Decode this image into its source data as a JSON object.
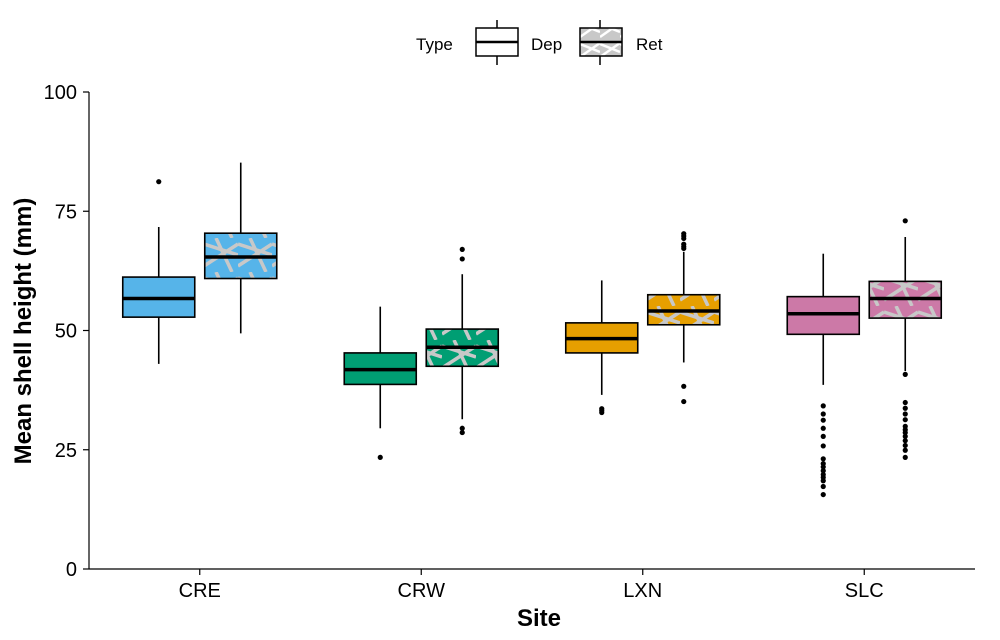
{
  "chart_data": {
    "type": "boxplot",
    "xlabel": "Site",
    "ylabel": "Mean shell height (mm)",
    "ylim": [
      0,
      100
    ],
    "yticks": [
      0,
      25,
      50,
      75,
      100
    ],
    "categories": [
      "CRE",
      "CRW",
      "LXN",
      "SLC"
    ],
    "colors": {
      "CRE": "#56b4e9",
      "CRW": "#009e73",
      "LXN": "#e69f00",
      "SLC": "#cc79a7"
    },
    "legend": {
      "title": "Type",
      "position": "top",
      "items": [
        "Dep",
        "Ret"
      ],
      "ret_pattern": "crosshatch-grey"
    },
    "series": [
      {
        "name": "Dep",
        "boxes": [
          {
            "site": "CRE",
            "whisker_low": 43,
            "q1": 52.8,
            "median": 56.7,
            "q3": 61.2,
            "whisker_high": 71.7,
            "outliers": [
              81.2
            ]
          },
          {
            "site": "CRW",
            "whisker_low": 29.5,
            "q1": 38.7,
            "median": 41.8,
            "q3": 45.3,
            "whisker_high": 55,
            "outliers": [
              23.4
            ]
          },
          {
            "site": "LXN",
            "whisker_low": 36.5,
            "q1": 45.3,
            "median": 48.3,
            "q3": 51.6,
            "whisker_high": 60.5,
            "outliers": [
              33.6,
              33.2,
              32.8
            ]
          },
          {
            "site": "SLC",
            "whisker_low": 38.6,
            "q1": 49.2,
            "median": 53.5,
            "q3": 57.1,
            "whisker_high": 66.1,
            "outliers": [
              34.2,
              32.5,
              31.2,
              29.5,
              27.8,
              25.8,
              23.1,
              22.1,
              21.4,
              20.6,
              19.8,
              19.2,
              18.5,
              17.3,
              15.6
            ]
          }
        ]
      },
      {
        "name": "Ret",
        "boxes": [
          {
            "site": "CRE",
            "whisker_low": 49.4,
            "q1": 60.9,
            "median": 65.4,
            "q3": 70.4,
            "whisker_high": 85.2,
            "outliers": []
          },
          {
            "site": "CRW",
            "whisker_low": 31.4,
            "q1": 42.5,
            "median": 46.5,
            "q3": 50.3,
            "whisker_high": 61.8,
            "outliers": [
              67,
              65,
              29.5,
              28.6
            ]
          },
          {
            "site": "LXN",
            "whisker_low": 43.3,
            "q1": 51.2,
            "median": 54.1,
            "q3": 57.5,
            "whisker_high": 66.5,
            "outliers": [
              70.3,
              69.8,
              69.3,
              68.1,
              67.6,
              67.2,
              38.3,
              35.1
            ]
          },
          {
            "site": "SLC",
            "whisker_low": 41.5,
            "q1": 52.6,
            "median": 56.7,
            "q3": 60.3,
            "whisker_high": 69.6,
            "outliers": [
              73,
              40.8,
              34.9,
              33.7,
              32.5,
              31.3,
              29.9,
              29.2,
              28.6,
              27.8,
              26.9,
              25.9,
              24.9,
              23.4
            ]
          }
        ]
      }
    ]
  }
}
